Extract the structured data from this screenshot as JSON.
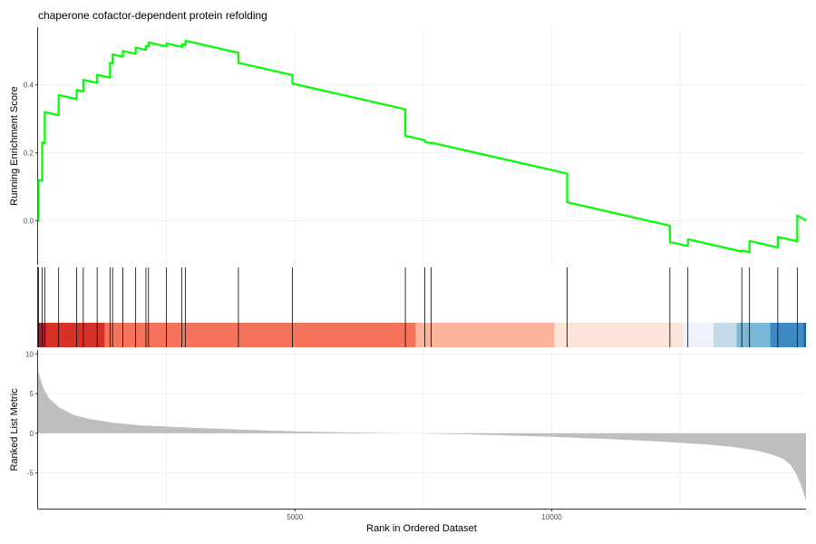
{
  "chart_data": {
    "type": "line",
    "title": "chaperone cofactor-dependent protein refolding",
    "xlabel": "Rank in Ordered Dataset",
    "xlim": [
      0,
      14950
    ],
    "grid": true,
    "legend": "none",
    "panels": {
      "running_score": {
        "ylabel": "Running Enrichment Score",
        "ylim": [
          -0.13,
          0.57
        ],
        "yticks": [
          "0.0",
          "0.2",
          "0.4"
        ],
        "ytick_values": [
          0.0,
          0.2,
          0.4
        ],
        "line_color": "#00ff00",
        "hit_ranks": [
          10,
          80,
          130,
          400,
          750,
          880,
          1150,
          1400,
          1450,
          1650,
          1900,
          2100,
          2150,
          2500,
          2800,
          2870,
          3900,
          4950,
          7150,
          7530,
          7650,
          10300,
          12300,
          12650,
          13700,
          13850,
          14400,
          14780
        ],
        "hit_scores": [
          0.12,
          0.23,
          0.32,
          0.37,
          0.385,
          0.415,
          0.43,
          0.465,
          0.49,
          0.5,
          0.51,
          0.515,
          0.525,
          0.522,
          0.52,
          0.53,
          0.465,
          0.404,
          0.25,
          0.232,
          0.23,
          0.054,
          -0.063,
          -0.055,
          -0.088,
          -0.06,
          -0.048,
          0.015
        ],
        "end_score": 0.0
      },
      "ranked_metric": {
        "ylabel": "Ranked List Metric",
        "ylim": [
          -9.5,
          10.5
        ],
        "yticks": [
          "-5",
          "0",
          "5",
          "10"
        ],
        "ytick_values": [
          -5,
          0,
          5,
          10
        ],
        "fill_color": "#bebebe",
        "curve_ranks": [
          0,
          30,
          100,
          200,
          400,
          700,
          1000,
          1500,
          2000,
          3000,
          4000,
          5000,
          6000,
          7000,
          7400,
          8000,
          9000,
          10000,
          11000,
          12000,
          13000,
          13500,
          14000,
          14300,
          14500,
          14650,
          14750,
          14850,
          14950
        ],
        "curve_values": [
          8.0,
          7.2,
          5.8,
          4.5,
          3.3,
          2.3,
          1.8,
          1.3,
          1.0,
          0.7,
          0.45,
          0.25,
          0.12,
          0.02,
          0.0,
          -0.08,
          -0.25,
          -0.45,
          -0.7,
          -1.0,
          -1.4,
          -1.7,
          -2.2,
          -2.7,
          -3.2,
          -4.0,
          -5.0,
          -6.5,
          -8.5
        ]
      },
      "color_band": {
        "segments": [
          {
            "to": 150,
            "color": "#b2182b"
          },
          {
            "to": 1300,
            "color": "#d73027"
          },
          {
            "to": 7350,
            "color": "#f4735a"
          },
          {
            "to": 10050,
            "color": "#fcb49c"
          },
          {
            "to": 12550,
            "color": "#fde4d8"
          },
          {
            "to": 13150,
            "color": "#eef2fa"
          },
          {
            "to": 13600,
            "color": "#c6dbe9"
          },
          {
            "to": 14250,
            "color": "#7ab8d8"
          },
          {
            "to": 14900,
            "color": "#3d8bc2"
          },
          {
            "to": 14950,
            "color": "#1e5fa0"
          }
        ]
      }
    },
    "xticks": [
      "5000",
      "10000"
    ],
    "xtick_values": [
      5000,
      10000
    ]
  }
}
